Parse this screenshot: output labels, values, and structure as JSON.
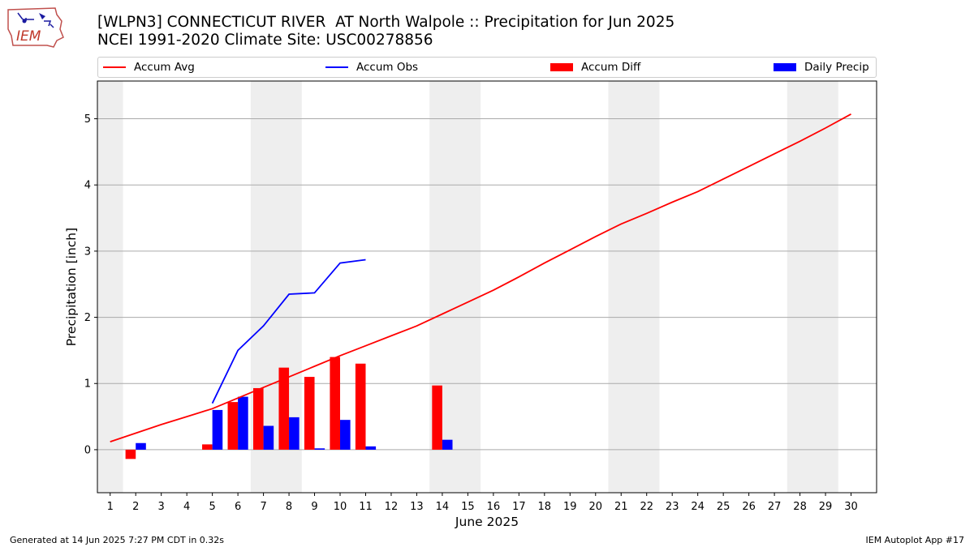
{
  "header": {
    "title_line1": "[WLPN3] CONNECTICUT RIVER  AT North Walpole :: Precipitation for Jun 2025",
    "title_line2": "NCEI 1991-2020 Climate Site: USC00278856",
    "logo_text": "IEM"
  },
  "legend": {
    "accum_avg": "Accum Avg",
    "accum_obs": "Accum Obs",
    "accum_diff": "Accum Diff",
    "daily_precip": "Daily Precip"
  },
  "footer": {
    "generated": "Generated at 14 Jun 2025 7:27 PM CDT in 0.32s",
    "app": "IEM Autoplot App #17"
  },
  "colors": {
    "accum_avg": "#ff0000",
    "accum_obs": "#0000ff",
    "accum_diff": "#ff0000",
    "daily_precip": "#0000ff",
    "weekend_shading": "#eeeeee",
    "grid": "#aaaaaa"
  },
  "chart_data": {
    "type": "bar",
    "title": "[WLPN3] CONNECTICUT RIVER  AT North Walpole :: Precipitation for Jun 2025",
    "subtitle": "NCEI 1991-2020 Climate Site: USC00278856",
    "xlabel": "June 2025",
    "ylabel": "Precipitation [inch]",
    "xlim": [
      0.5,
      31
    ],
    "ylim": [
      -0.65,
      5.57
    ],
    "x_ticks": [
      1,
      2,
      3,
      4,
      5,
      6,
      7,
      8,
      9,
      10,
      11,
      12,
      13,
      14,
      15,
      16,
      17,
      18,
      19,
      20,
      21,
      22,
      23,
      24,
      25,
      26,
      27,
      28,
      29,
      30
    ],
    "y_ticks": [
      0,
      1,
      2,
      3,
      4,
      5
    ],
    "grid": "horizontal",
    "legend_position": "top",
    "shaded_days": [
      [
        0.5,
        1.5
      ],
      [
        6.5,
        8.5
      ],
      [
        13.5,
        15.5
      ],
      [
        20.5,
        22.5
      ],
      [
        27.5,
        29.5
      ]
    ],
    "series": [
      {
        "name": "Accum Avg",
        "type": "line",
        "x": [
          1,
          2,
          3,
          4,
          5,
          6,
          7,
          8,
          9,
          10,
          11,
          12,
          13,
          14,
          15,
          16,
          17,
          18,
          19,
          20,
          21,
          22,
          23,
          24,
          25,
          26,
          27,
          28,
          29,
          30
        ],
        "values": [
          0.12,
          0.25,
          0.38,
          0.5,
          0.62,
          0.78,
          0.94,
          1.1,
          1.26,
          1.42,
          1.57,
          1.72,
          1.87,
          2.05,
          2.23,
          2.41,
          2.61,
          2.82,
          3.02,
          3.22,
          3.41,
          3.57,
          3.74,
          3.9,
          4.09,
          4.28,
          4.47,
          4.66,
          4.86,
          5.07
        ]
      },
      {
        "name": "Accum Obs",
        "type": "line",
        "x": [
          5,
          6,
          7,
          8,
          9,
          10,
          11
        ],
        "values": [
          0.7,
          1.5,
          1.87,
          2.35,
          2.37,
          2.82,
          2.87
        ]
      },
      {
        "name": "Accum Diff",
        "type": "bar",
        "x": [
          2,
          5,
          6,
          7,
          8,
          9,
          10,
          11,
          14
        ],
        "values": [
          -0.14,
          0.08,
          0.72,
          0.93,
          1.24,
          1.1,
          1.4,
          1.3,
          0.97
        ]
      },
      {
        "name": "Daily Precip",
        "type": "bar",
        "x": [
          2,
          5,
          6,
          7,
          8,
          9,
          10,
          11,
          14
        ],
        "values": [
          0.1,
          0.6,
          0.8,
          0.36,
          0.49,
          0.02,
          0.45,
          0.05,
          0.15
        ]
      }
    ]
  }
}
